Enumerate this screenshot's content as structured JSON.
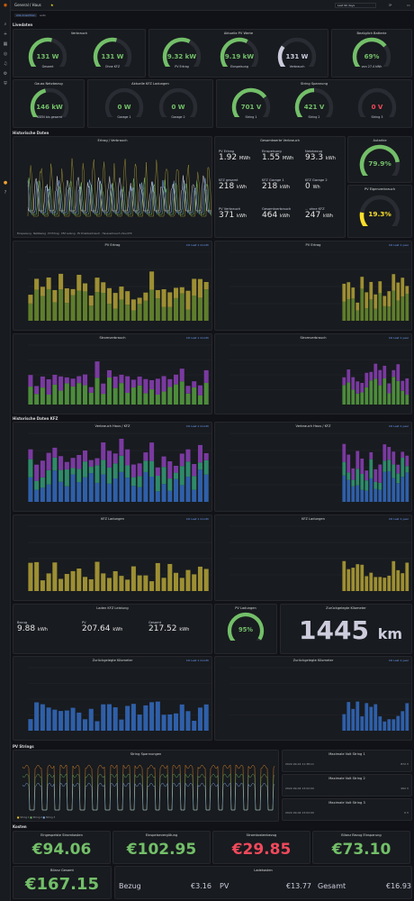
{
  "topbar": {
    "breadcrumb": "General / Haus",
    "search": "Last 90 days",
    "sub_tags": [
      "Alle Ansichten",
      "auto"
    ]
  },
  "rows": {
    "live": "Livedaten",
    "hist": "Historische Daten",
    "hist_kfz": "Historische Daten KFZ",
    "pv": "PV Strings",
    "cost": "Kosten"
  },
  "live": {
    "verbrauch": {
      "title": "Verbrauch",
      "gauges": [
        {
          "v": "131 W",
          "l": "Gesamt"
        },
        {
          "v": "131 W",
          "l": "Ohne KFZ"
        }
      ]
    },
    "pv": {
      "title": "Aktuelle PV Werte",
      "gauges": [
        {
          "v": "9.32 kW",
          "l": "PV Ertrag"
        },
        {
          "v": "9.19 kW",
          "l": "Einspeisung"
        },
        {
          "v": "131 W",
          "l": "Verbrauch"
        }
      ]
    },
    "batterie": {
      "title": "Bezüglich Batterie",
      "gauges": [
        {
          "v": "69%",
          "l": "von 27.4 kWh"
        }
      ]
    },
    "netz": {
      "title": "Gauss Netzbezug",
      "gauges": [
        {
          "v": "146 kW",
          "l": "SSEN bis gesamt"
        }
      ]
    },
    "kfz": {
      "title": "Aktuelle KFZ Ladungen",
      "gauges": [
        {
          "v": "0 W",
          "l": "Garage 1"
        },
        {
          "v": "0 W",
          "l": "Garage 2"
        }
      ]
    },
    "string": {
      "title": "String Spannung",
      "gauges": [
        {
          "v": "701 V",
          "l": "String 1"
        },
        {
          "v": "421 V",
          "l": "String 2"
        },
        {
          "v": "0 V",
          "l": "String 3"
        }
      ]
    }
  },
  "hist": {
    "ertrag_title": "Ertrag / Verbrauch",
    "gesamt_title": "Gesamtwerte Verbrauch",
    "stats": [
      {
        "l": "PV Ertrag",
        "v": "1.92",
        "u": "MWh"
      },
      {
        "l": "Einspeisung",
        "v": "1.55",
        "u": "MWh"
      },
      {
        "l": "Netzbezug",
        "v": "93.3",
        "u": "kWh"
      },
      {
        "l": "KFZ gesamt",
        "v": "218",
        "u": "kWh"
      },
      {
        "l": "KFZ Garage 1",
        "v": "218",
        "u": "kWh"
      },
      {
        "l": "KFZ Garage 2",
        "v": "0",
        "u": "Wh"
      },
      {
        "l": "PV Verbrauch",
        "v": "371",
        "u": "kWh"
      },
      {
        "l": "Gesamtverbrauch",
        "v": "464",
        "u": "kWh"
      },
      {
        "l": "... ohne KFZ",
        "v": "247",
        "u": "kWh"
      }
    ],
    "autarkie": {
      "title": "Autarkie",
      "v": "79.9%"
    },
    "eigen": {
      "title": "PV Eigenverbrauch",
      "v": "19.3%"
    },
    "legend1": [
      "Einspeisung",
      "Netzbezug",
      "PV Ertrag",
      "KFZ Ladung",
      "PV Direktverbrauch",
      "Hausverbrauch ohne KFZ"
    ]
  },
  "panels": {
    "pv_ertrag1": "PV Ertrag",
    "pv_ertrag2": "PV Ertrag",
    "strom1": "Stromverbrauch",
    "strom2": "Stromverbrauch",
    "vh1": "Verbrauch Haus / KFZ",
    "vh2": "Verbrauch Haus / KFZ",
    "kfz1": "KFZ Ladungen",
    "kfz2": "KFZ Ladungen",
    "link_short": "CO Last 1 month",
    "link_year": "CO Last 1 year"
  },
  "kfz_stats": {
    "title": "Laden KFZ Leistung",
    "items": [
      {
        "l": "Bezug",
        "v": "9.88",
        "u": "kWh"
      },
      {
        "l": "PV",
        "v": "207.64",
        "u": "kWh"
      },
      {
        "l": "Gesamt",
        "v": "217.52",
        "u": "kWh"
      }
    ]
  },
  "pv_ladungen": {
    "title": "PV Ladungen",
    "v": "95%"
  },
  "km": {
    "title": "Zurückgelegte Kilometer",
    "v": "1445",
    "u": "km"
  },
  "km_panels": {
    "a": "Zurückgelegte Kilometer",
    "b": "Zurückgelegte Kilometer"
  },
  "strings": {
    "title": "String Spannungen",
    "max": [
      {
        "t": "Maximale Volt String 1",
        "time": "2022-09-24 11:38:11",
        "v": "872 V"
      },
      {
        "t": "Maximale Volt String 2",
        "time": "2022-09-04 13:02:00",
        "v": "492 V"
      },
      {
        "t": "Maximale Volt String 3",
        "time": "2022-09-04 13:02:00",
        "v": "0 V"
      }
    ],
    "legend": [
      "String 1",
      "String 2",
      "String 3"
    ]
  },
  "cost": {
    "items": [
      {
        "t": "Eingespeiste Stromkosten",
        "v": "€94.06",
        "c": "#73bf69"
      },
      {
        "t": "Einspeisevergütung",
        "v": "€102.95",
        "c": "#73bf69"
      },
      {
        "t": "Stromkostenbezug",
        "v": "€29.85",
        "c": "#f2495c"
      },
      {
        "t": "Bilanz Bezug Einsparung",
        "v": "€73.10",
        "c": "#73bf69"
      }
    ],
    "bilanz": {
      "t": "Bilanz Gesamt",
      "v": "€167.15"
    },
    "lade": {
      "t": "Ladekosten",
      "items": [
        {
          "l": "Bezug",
          "v": "€3.16"
        },
        {
          "l": "PV",
          "v": "€13.77"
        },
        {
          "l": "Gesamt",
          "v": "€16.93"
        }
      ]
    }
  },
  "colors": {
    "green": "#73bf69",
    "yellow": "#fade2a",
    "red": "#f2495c",
    "olive": "#9d8f33",
    "purple": "#8f3bb8",
    "blue": "#3274d9",
    "orange": "#ff9830"
  }
}
